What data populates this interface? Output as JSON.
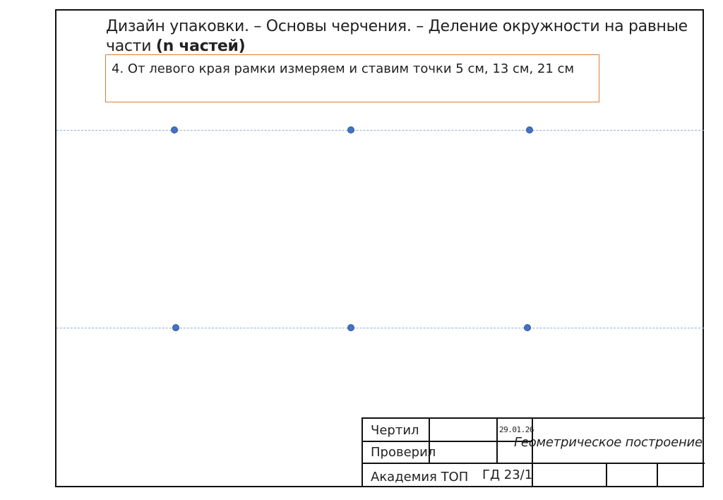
{
  "header": {
    "title_line1": "Дизайн упаковки. – Основы черчения. – Деление окружности на равные",
    "title_line2_prefix": "части ",
    "title_line2_bold": "(n частей)"
  },
  "step": {
    "text": "4. От левого края рамки измеряем и ставим точки 5 см, 13 см, 21 см"
  },
  "colors": {
    "frame": "#111111",
    "step_border": "#e07b39",
    "guide_line": "#8fb0d6",
    "point_fill": "#4472c4"
  },
  "title_block": {
    "drawn_label": "Чертил",
    "checked_label": "Проверил",
    "date": "29.01.26",
    "drawing_title": "Геометрическое построение",
    "organization": "Академия ТОП",
    "code": "ГД 23/1"
  }
}
